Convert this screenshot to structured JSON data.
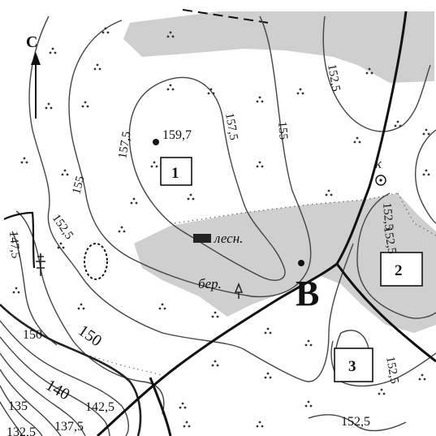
{
  "map": {
    "north_letter": "С",
    "contour_labels": [
      "157,5",
      "155",
      "152,5",
      "152,5",
      "155",
      "152,5",
      "152,5",
      "147,5",
      "150",
      "150",
      "140",
      "142,5",
      "135",
      "137,5",
      "132,5",
      "152,5",
      "157,5",
      "152,5"
    ],
    "height_point": "159,7",
    "points": [
      "1",
      "2",
      "3"
    ],
    "main_point": "В",
    "forest_label": "лесн.",
    "birch_label": "бер.",
    "spring_label": "к"
  },
  "colors": {
    "forest_fill": "#cfcfcf",
    "contour": "#444444",
    "road": "#111111"
  }
}
